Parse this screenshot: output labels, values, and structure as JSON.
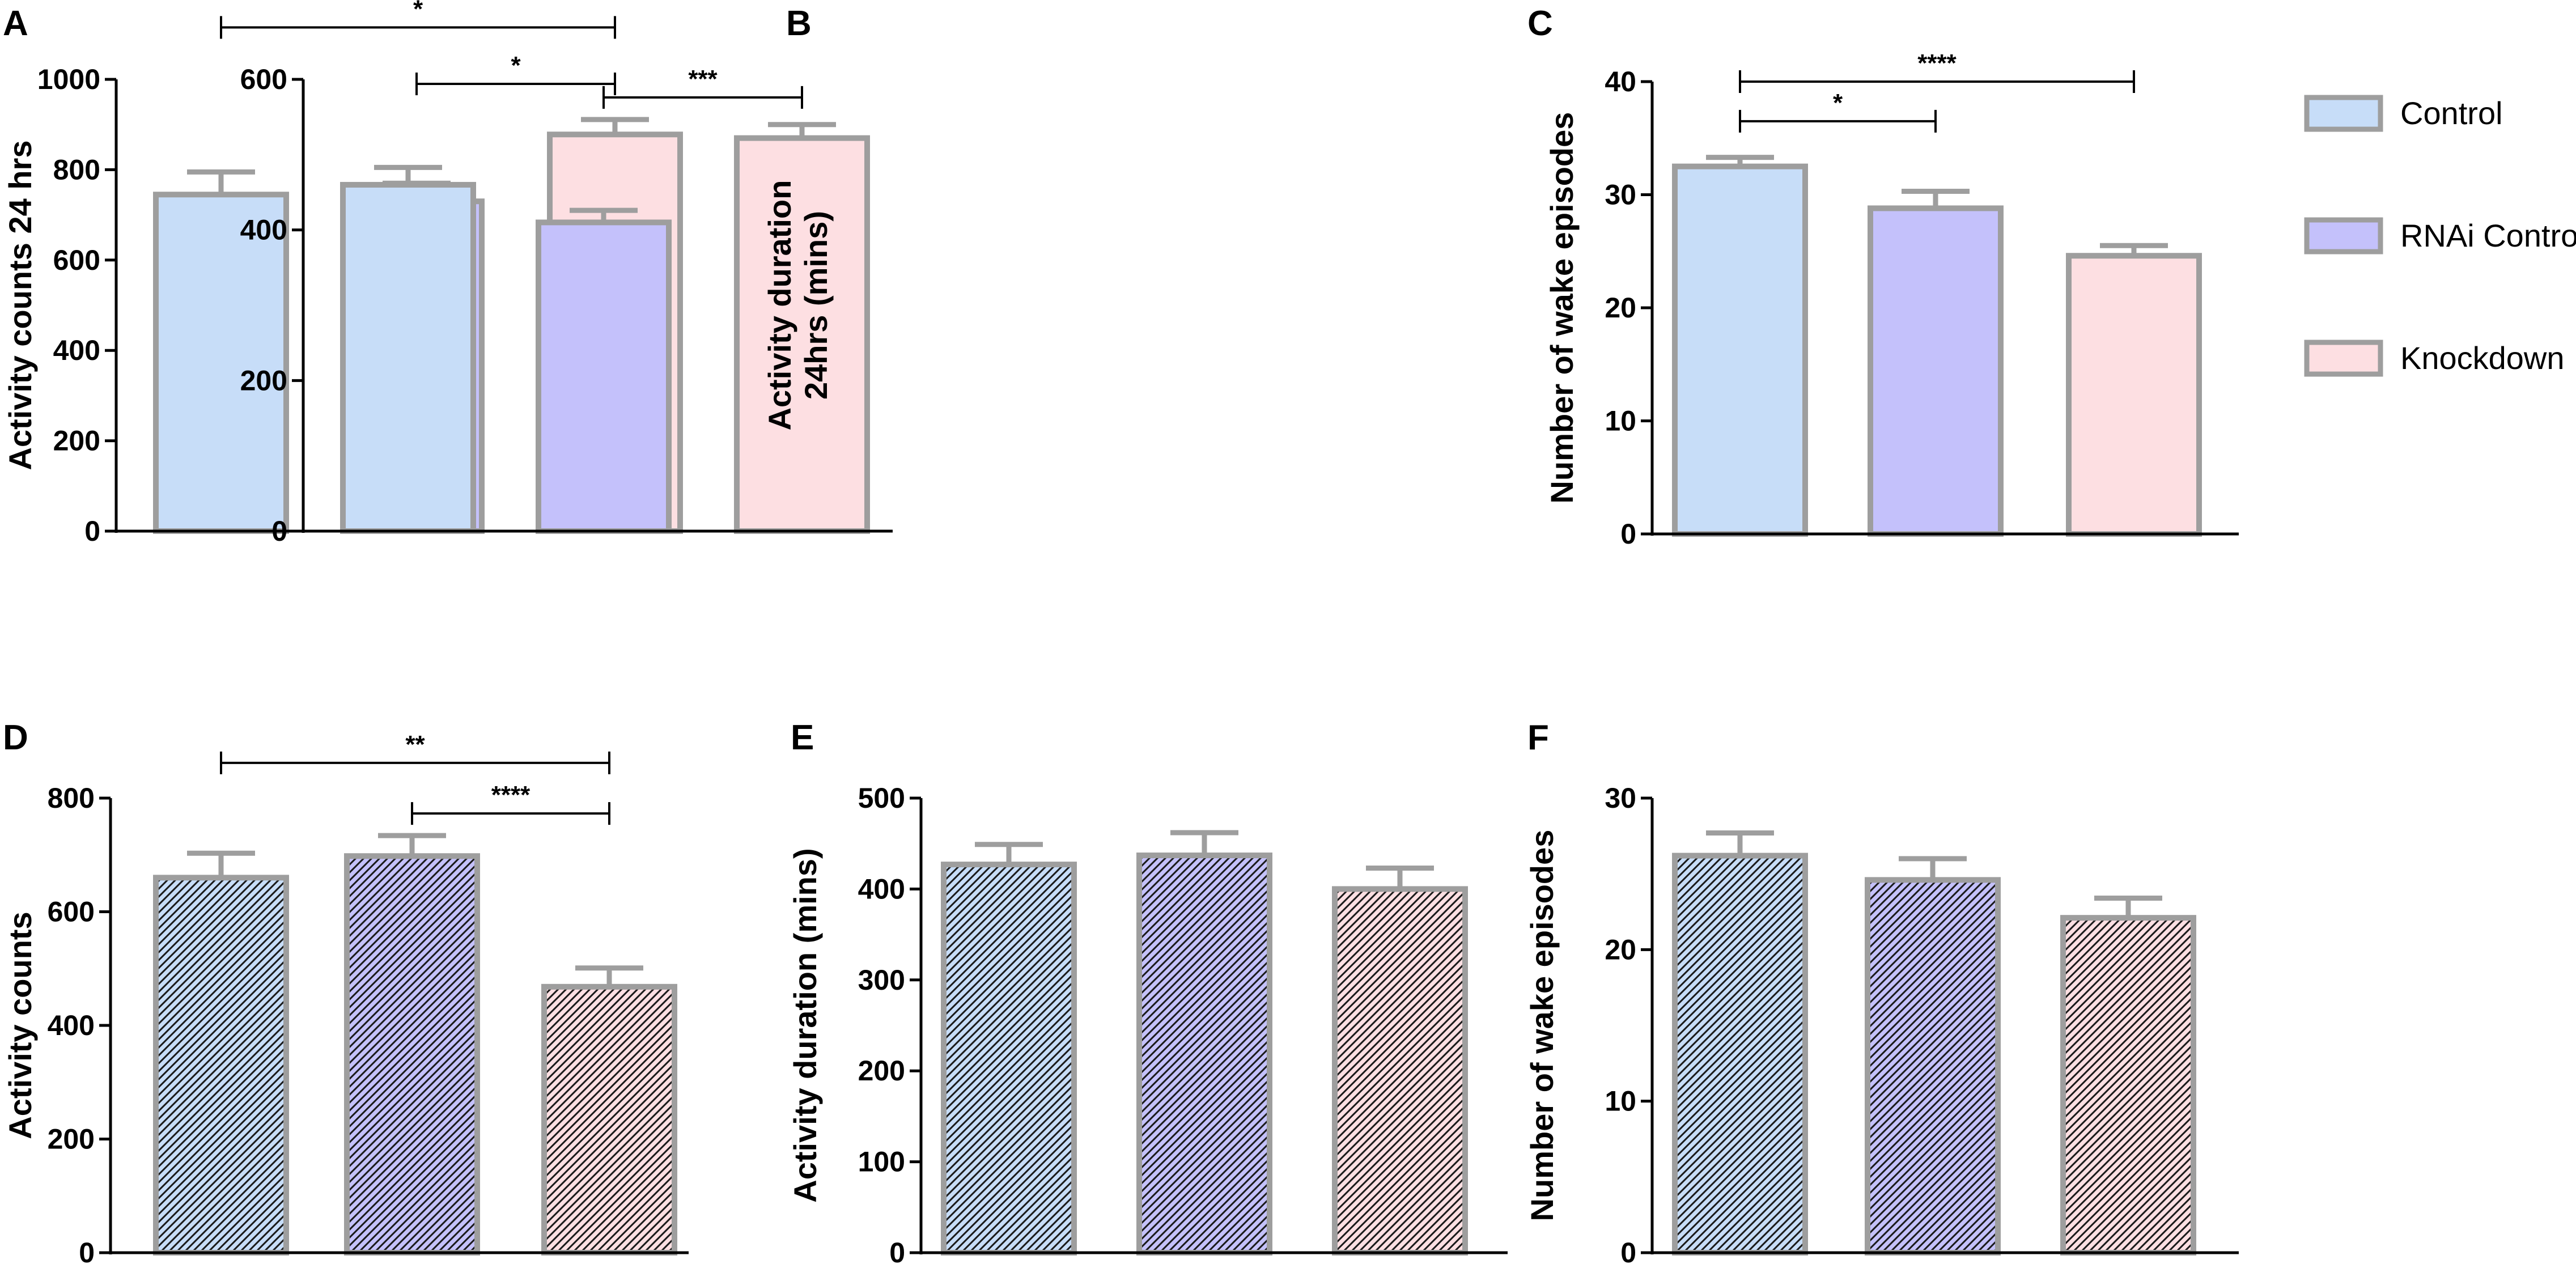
{
  "colors": {
    "control": "#c7ddf8",
    "rnai_control": "#c4c1fb",
    "knockdown": "#fddfe2",
    "bar_border": "#9e9e9e",
    "axis": "#000000",
    "hatch": "#1a1a1a"
  },
  "legend": {
    "items": [
      {
        "label": "Control",
        "color": "#c7ddf8"
      },
      {
        "label": "RNAi Control",
        "color": "#c4c1fb"
      },
      {
        "label": "Knockdown",
        "color": "#fddfe2"
      }
    ]
  },
  "chart_data": [
    {
      "panel": "A",
      "type": "bar",
      "hatched": false,
      "categories": [
        "Control",
        "RNAi Control",
        "Knockdown"
      ],
      "values": [
        745,
        730,
        878
      ],
      "errors": [
        50,
        40,
        33
      ],
      "ylabel": "Activity counts 24 hrs",
      "ylim": [
        0,
        1000
      ],
      "yticks": [
        0,
        200,
        400,
        600,
        800,
        1000
      ],
      "significance": [
        {
          "from": 0,
          "to": 2,
          "label": "*",
          "level": 1115
        },
        {
          "from": 1,
          "to": 2,
          "label": "*",
          "level": 990
        }
      ]
    },
    {
      "panel": "B",
      "type": "bar",
      "hatched": false,
      "categories": [
        "Control",
        "RNAi Control",
        "Knockdown"
      ],
      "values": [
        460,
        410,
        522
      ],
      "errors": [
        23,
        16,
        18
      ],
      "ylabel_lines": [
        "Activity duration",
        "24hrs (mins)"
      ],
      "ylim": [
        0,
        600
      ],
      "yticks": [
        0,
        200,
        400,
        600
      ],
      "significance": [
        {
          "from": 1,
          "to": 2,
          "label": "***",
          "level": 576
        }
      ]
    },
    {
      "panel": "C",
      "type": "bar",
      "hatched": false,
      "categories": [
        "Control",
        "RNAi Control",
        "Knockdown"
      ],
      "values": [
        32.5,
        28.8,
        24.6
      ],
      "errors": [
        0.8,
        1.5,
        0.9
      ],
      "ylabel": "Number of wake episodes",
      "ylim": [
        0,
        40
      ],
      "yticks": [
        0,
        10,
        20,
        30,
        40
      ],
      "significance": [
        {
          "from": 0,
          "to": 2,
          "label": "****",
          "level": 40
        },
        {
          "from": 0,
          "to": 1,
          "label": "*",
          "level": 36.5
        }
      ]
    },
    {
      "panel": "D",
      "type": "bar",
      "hatched": true,
      "categories": [
        "Control",
        "RNAi Control",
        "Knockdown"
      ],
      "values": [
        660,
        698,
        468
      ],
      "errors": [
        43,
        36,
        33
      ],
      "ylabel": "Activity counts",
      "ylim": [
        0,
        800
      ],
      "yticks": [
        0,
        200,
        400,
        600,
        800
      ],
      "significance": [
        {
          "from": 0,
          "to": 2,
          "label": "**",
          "level": 862
        },
        {
          "from": 1,
          "to": 2,
          "label": "****",
          "level": 773
        }
      ]
    },
    {
      "panel": "E",
      "type": "bar",
      "hatched": true,
      "categories": [
        "Control",
        "RNAi Control",
        "Knockdown"
      ],
      "values": [
        427,
        437,
        400
      ],
      "errors": [
        22,
        25,
        23
      ],
      "ylabel": "Activity duration (mins)",
      "ylim": [
        0,
        500
      ],
      "yticks": [
        0,
        100,
        200,
        300,
        400,
        500
      ],
      "significance": []
    },
    {
      "panel": "F",
      "type": "bar",
      "hatched": true,
      "categories": [
        "Control",
        "RNAi Control",
        "Knockdown"
      ],
      "values": [
        26.2,
        24.6,
        22.1
      ],
      "errors": [
        1.5,
        1.4,
        1.3
      ],
      "ylabel": "Number of wake episodes",
      "ylim": [
        0,
        30
      ],
      "yticks": [
        0,
        10,
        20,
        30
      ],
      "significance": []
    }
  ]
}
